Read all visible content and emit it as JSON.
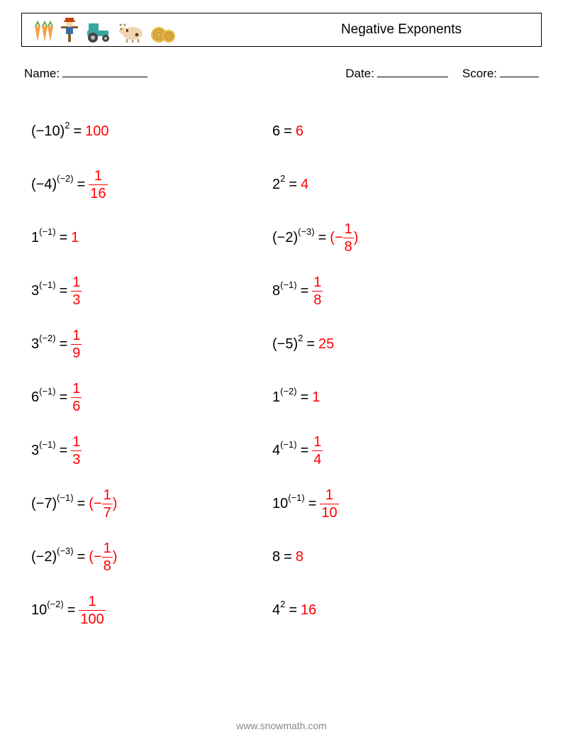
{
  "header": {
    "title": "Negative Exponents",
    "icons": [
      "carrots",
      "scarecrow",
      "tractor",
      "cow",
      "hay-bale"
    ]
  },
  "meta": {
    "name_label": "Name:",
    "date_label": "Date:",
    "score_label": "Score:"
  },
  "colors": {
    "answer_color": "#ff0000",
    "text_color": "#000000",
    "bg_color": "#ffffff",
    "footer_color": "#888888"
  },
  "problems": {
    "left": [
      {
        "base": "(−10)",
        "exp": "2",
        "answer_type": "int",
        "answer": "100"
      },
      {
        "base": "(−4)",
        "exp": "(−2)",
        "answer_type": "frac",
        "num": "1",
        "den": "16"
      },
      {
        "base": "1",
        "exp": "(−1)",
        "answer_type": "int",
        "answer": "1"
      },
      {
        "base": "3",
        "exp": "(−1)",
        "answer_type": "frac",
        "num": "1",
        "den": "3"
      },
      {
        "base": "3",
        "exp": "(−2)",
        "answer_type": "frac",
        "num": "1",
        "den": "9"
      },
      {
        "base": "6",
        "exp": "(−1)",
        "answer_type": "frac",
        "num": "1",
        "den": "6"
      },
      {
        "base": "3",
        "exp": "(−1)",
        "answer_type": "frac",
        "num": "1",
        "den": "3"
      },
      {
        "base": "(−7)",
        "exp": "(−1)",
        "answer_type": "negfrac",
        "num": "1",
        "den": "7"
      },
      {
        "base": "(−2)",
        "exp": "(−3)",
        "answer_type": "negfrac",
        "num": "1",
        "den": "8"
      },
      {
        "base": "10",
        "exp": "(−2)",
        "answer_type": "frac",
        "num": "1",
        "den": "100"
      }
    ],
    "right": [
      {
        "base": "6",
        "exp": "",
        "answer_type": "int",
        "answer": "6"
      },
      {
        "base": "2",
        "exp": "2",
        "answer_type": "int",
        "answer": "4"
      },
      {
        "base": "(−2)",
        "exp": "(−3)",
        "answer_type": "negfrac",
        "num": "1",
        "den": "8"
      },
      {
        "base": "8",
        "exp": "(−1)",
        "answer_type": "frac",
        "num": "1",
        "den": "8"
      },
      {
        "base": "(−5)",
        "exp": "2",
        "answer_type": "int",
        "answer": "25"
      },
      {
        "base": "1",
        "exp": "(−2)",
        "answer_type": "int",
        "answer": "1"
      },
      {
        "base": "4",
        "exp": "(−1)",
        "answer_type": "frac",
        "num": "1",
        "den": "4"
      },
      {
        "base": "10",
        "exp": "(−1)",
        "answer_type": "frac",
        "num": "1",
        "den": "10"
      },
      {
        "base": "8",
        "exp": "",
        "answer_type": "int",
        "answer": "8"
      },
      {
        "base": "4",
        "exp": "2",
        "answer_type": "int",
        "answer": "16"
      }
    ]
  },
  "footer": {
    "url": "www.snowmath.com"
  }
}
